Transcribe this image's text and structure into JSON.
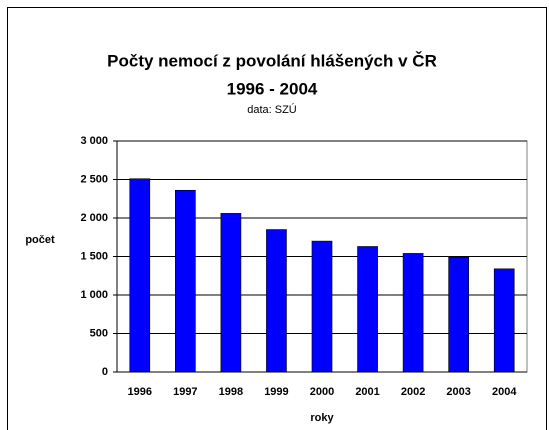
{
  "chart_data": {
    "type": "bar",
    "title": "Počty nemocí z povolání hlášených v ČR",
    "subtitle": "1996 - 2004",
    "note": "data: SZÚ",
    "x_label": "roky",
    "y_label": "počet",
    "categories": [
      "1996",
      "1997",
      "1998",
      "1999",
      "2000",
      "2001",
      "2002",
      "2003",
      "2004"
    ],
    "values": [
      2510,
      2360,
      2060,
      1850,
      1700,
      1630,
      1540,
      1490,
      1340
    ],
    "color": "#0000ff",
    "ylim": [
      0,
      3000
    ],
    "yticks": [
      0,
      500,
      {
        "value": 1000,
        "label": "1 000"
      },
      {
        "value": 1500,
        "label": "1 500"
      },
      {
        "value": 2000,
        "label": "2 000"
      },
      {
        "value": 2500,
        "label": "2 500"
      },
      {
        "value": 3000,
        "label": "3 000"
      }
    ],
    "grid": true
  }
}
